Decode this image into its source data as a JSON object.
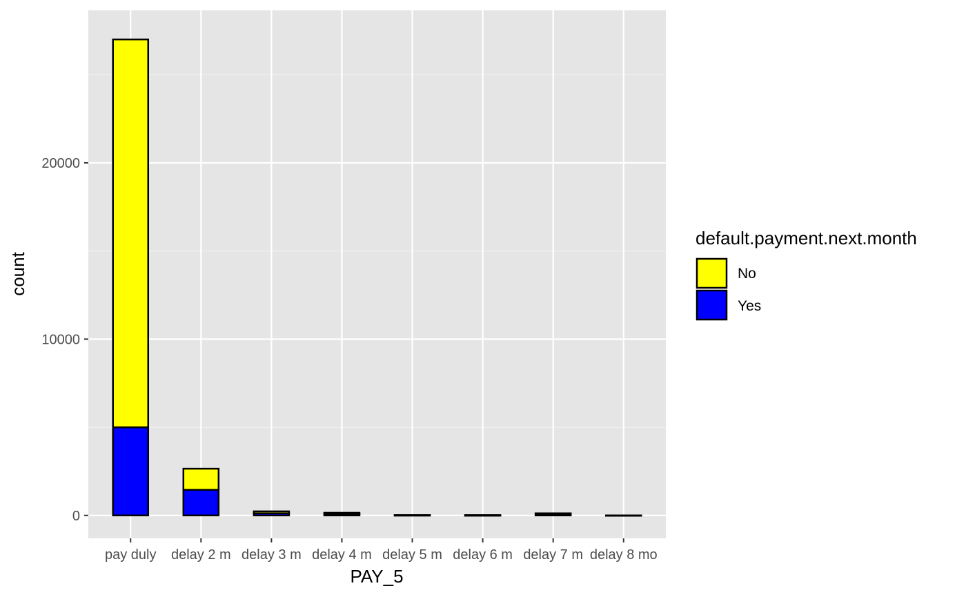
{
  "chart_data": {
    "type": "bar",
    "stacked": true,
    "xlabel": "PAY_5",
    "ylabel": "count",
    "categories": [
      "pay duly",
      "delay 2 m",
      "delay 3 m",
      "delay 4 m",
      "delay 5 m",
      "delay 6 m",
      "delay 7 m",
      "delay 8 mo"
    ],
    "series": [
      {
        "name": "Yes",
        "color": "#0000ff",
        "values": [
          5000,
          1450,
          120,
          80,
          10,
          5,
          60,
          1
        ]
      },
      {
        "name": "No",
        "color": "#ffff00",
        "values": [
          22000,
          1200,
          110,
          70,
          7,
          12,
          60,
          0
        ]
      }
    ],
    "ylim": [
      -1300,
      28650
    ],
    "yticks": [
      0,
      10000,
      20000
    ],
    "ytick_labels": [
      "0",
      "10000",
      "20000"
    ],
    "grid": true,
    "panel_background": "#e5e5e5",
    "legend": {
      "title": "default.payment.next.month",
      "placement": "right",
      "entries": [
        {
          "label": "No",
          "color": "#ffff00"
        },
        {
          "label": "Yes",
          "color": "#0000ff"
        }
      ]
    }
  }
}
